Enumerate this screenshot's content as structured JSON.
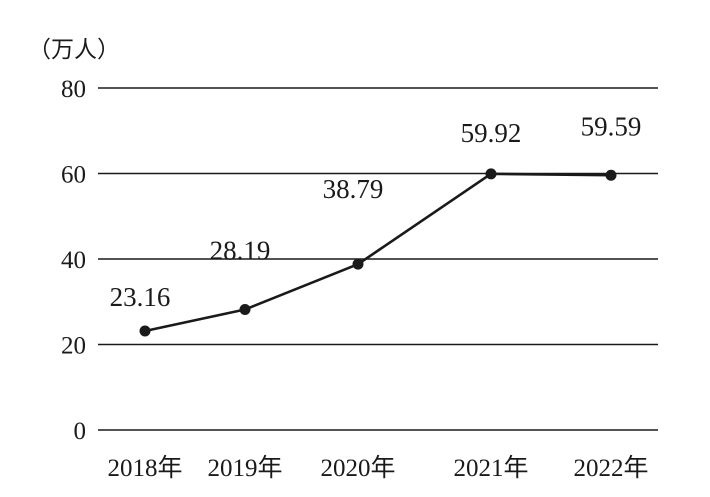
{
  "chart_data": {
    "type": "line",
    "title": "",
    "ylabel": "（万人）",
    "xlabel": "",
    "categories": [
      "2018年",
      "2019年",
      "2020年",
      "2021年",
      "2022年"
    ],
    "series": [
      {
        "values": [
          23.16,
          28.19,
          38.79,
          59.92,
          59.59
        ],
        "labels": [
          "23.16",
          "28.19",
          "38.79",
          "59.92",
          "59.59"
        ]
      }
    ],
    "ylim": [
      0,
      80
    ],
    "yticks": [
      0,
      20,
      40,
      60,
      80
    ],
    "ytick_labels": [
      "0",
      "20",
      "40",
      "60",
      "80"
    ],
    "grid": true,
    "colors": {
      "line": "#1a1a1a",
      "grid": "#1a1a1a",
      "text": "#1a1a1a"
    }
  }
}
